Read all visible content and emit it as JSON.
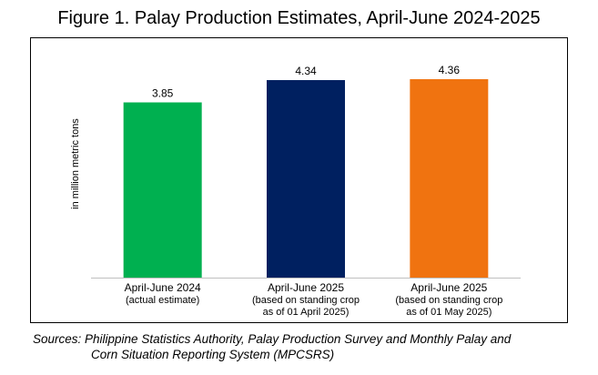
{
  "header": {
    "title": "Figure 1. Palay Production Estimates, April-June 2024-2025"
  },
  "chart_data": {
    "type": "bar",
    "title": "Figure 1. Palay Production Estimates, April-June 2024-2025",
    "xlabel": "",
    "ylabel": "in million metric tons",
    "ylim": [
      0,
      5.0
    ],
    "grid": false,
    "categories": [
      [
        "April-June 2024",
        "(actual estimate)"
      ],
      [
        "April-June 2025",
        "(based on standing crop",
        "as of 01 April 2025)"
      ],
      [
        "April-June 2025",
        "(based on standing crop",
        "as of 01 May 2025)"
      ]
    ],
    "values": [
      3.85,
      4.34,
      4.36
    ],
    "value_labels": [
      "3.85",
      "4.34",
      "4.36"
    ],
    "colors": [
      "#00b050",
      "#002060",
      "#f07310"
    ]
  },
  "footer": {
    "sources_line1": "Sources: Philippine Statistics Authority, Palay Production Survey and Monthly Palay and",
    "sources_line2": "Corn Situation Reporting System (MPCSRS)"
  }
}
